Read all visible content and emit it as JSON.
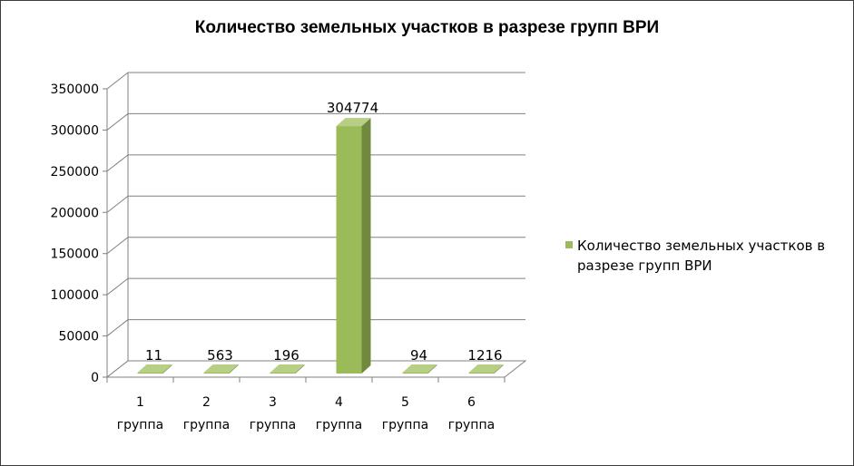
{
  "chart_data": {
    "type": "bar",
    "title": "Количество земельных участков в разрезе групп ВРИ",
    "categories": [
      [
        "1",
        "группа"
      ],
      [
        "2",
        "группа"
      ],
      [
        "3",
        "группа"
      ],
      [
        "4",
        "группа"
      ],
      [
        "5",
        "группа"
      ],
      [
        "6",
        "группа"
      ]
    ],
    "series": [
      {
        "name": "Количество земельных участков в разрезе групп ВРИ",
        "values": [
          11,
          563,
          196,
          304774,
          94,
          1216
        ]
      }
    ],
    "yticks": [
      0,
      50000,
      100000,
      150000,
      200000,
      250000,
      300000,
      350000
    ],
    "ylim": [
      0,
      350000
    ],
    "grid": true,
    "legend_position": "right",
    "style": "3d-column",
    "colors": {
      "bar_front": "#9BBB59",
      "bar_side": "#71893F",
      "bar_top": "#B7CF84",
      "grid": "#808080",
      "legend": "#9BBB59"
    }
  }
}
